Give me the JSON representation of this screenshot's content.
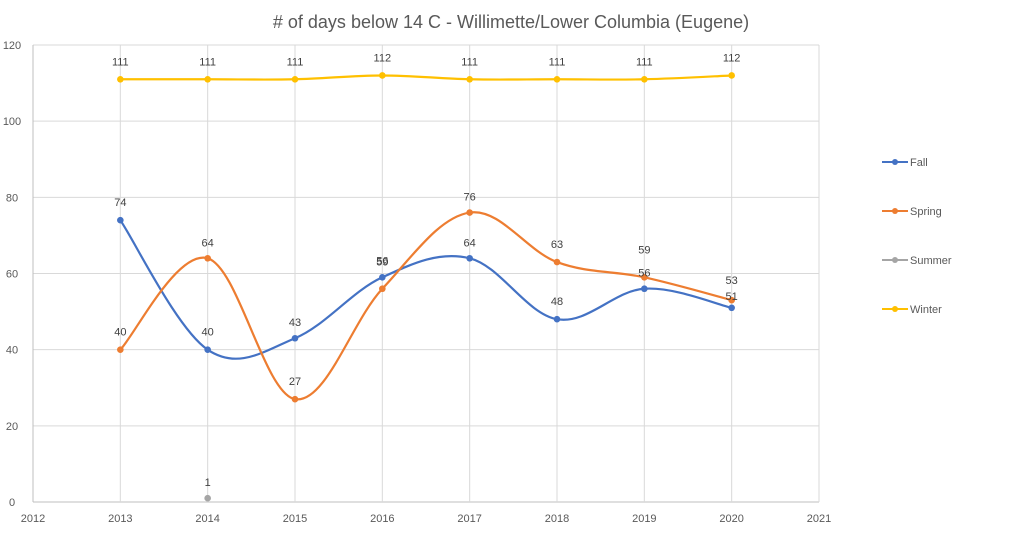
{
  "chart_data": {
    "type": "line",
    "title": "# of days below 14 C - Willimette/Lower Columbia (Eugene)",
    "xlabel": "",
    "ylabel": "",
    "xlim": [
      2012,
      2021
    ],
    "ylim": [
      0,
      120
    ],
    "x_ticks": [
      "2012",
      "2013",
      "2014",
      "2015",
      "2016",
      "2017",
      "2018",
      "2019",
      "2020",
      "2021"
    ],
    "y_ticks": [
      "0",
      "20",
      "40",
      "60",
      "80",
      "100",
      "120"
    ],
    "grid": true,
    "smooth": true,
    "legend_position": "right",
    "series": [
      {
        "name": "Fall",
        "color": "#4472C4",
        "points": [
          {
            "x": 2013,
            "y": 74
          },
          {
            "x": 2014,
            "y": 40
          },
          {
            "x": 2015,
            "y": 43
          },
          {
            "x": 2016,
            "y": 59
          },
          {
            "x": 2017,
            "y": 64
          },
          {
            "x": 2018,
            "y": 48
          },
          {
            "x": 2019,
            "y": 56
          },
          {
            "x": 2020,
            "y": 51
          }
        ]
      },
      {
        "name": "Spring",
        "color": "#ED7D31",
        "points": [
          {
            "x": 2013,
            "y": 40
          },
          {
            "x": 2014,
            "y": 64
          },
          {
            "x": 2015,
            "y": 27
          },
          {
            "x": 2016,
            "y": 56
          },
          {
            "x": 2017,
            "y": 76
          },
          {
            "x": 2018,
            "y": 63
          },
          {
            "x": 2019,
            "y": 59
          },
          {
            "x": 2020,
            "y": 53
          }
        ]
      },
      {
        "name": "Summer",
        "color": "#A5A5A5",
        "points": [
          {
            "x": 2014,
            "y": 1
          }
        ]
      },
      {
        "name": "Winter",
        "color": "#FFC000",
        "points": [
          {
            "x": 2013,
            "y": 111
          },
          {
            "x": 2014,
            "y": 111
          },
          {
            "x": 2015,
            "y": 111
          },
          {
            "x": 2016,
            "y": 112
          },
          {
            "x": 2017,
            "y": 111
          },
          {
            "x": 2018,
            "y": 111
          },
          {
            "x": 2019,
            "y": 111
          },
          {
            "x": 2020,
            "y": 112
          }
        ]
      }
    ]
  }
}
